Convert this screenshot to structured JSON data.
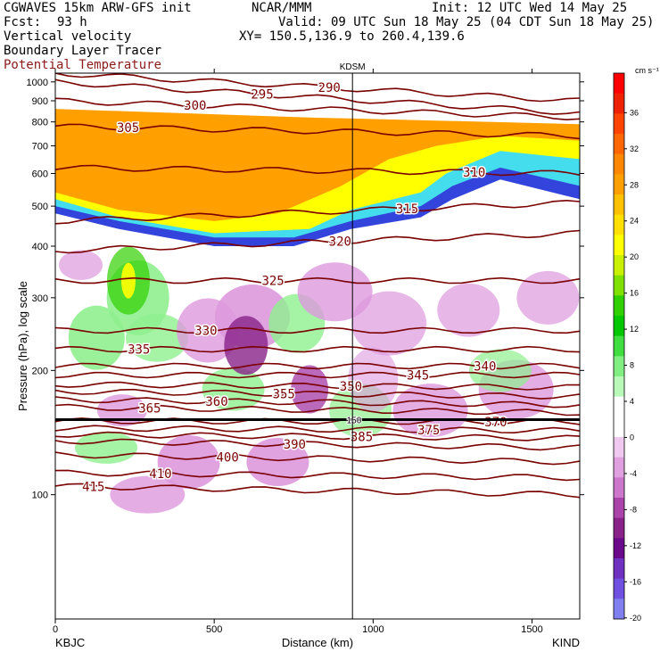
{
  "header": {
    "title": "CGWAVES 15km ARW-GFS init",
    "center": "NCAR/MMM",
    "init": "Init: 12 UTC Wed 14 May 25",
    "fcst_label": "Fcst:",
    "fcst_value": "93 h",
    "valid": "Valid: 09 UTC Sun 18 May 25 (04 CDT Sun 18 May 25)",
    "field1": "Vertical velocity",
    "field2": "Boundary Layer Tracer",
    "field3": "Potential Temperature",
    "xy": "XY= 150.5,136.9 to 260.4,139.6"
  },
  "colors": {
    "theta": "#7a0000",
    "green": "#8ff08f",
    "purple": "#dd99dd"
  },
  "chart_data": {
    "type": "heatmap",
    "xlabel": "Distance (km)",
    "ylabel": "Pressure (hPa), log scale",
    "xlim": [
      0,
      1650
    ],
    "ylim": [
      1050,
      50
    ],
    "y_scale": "log",
    "x_ticks": [
      0,
      500,
      1000,
      1500
    ],
    "y_ticks": [
      100,
      200,
      300,
      400,
      500,
      600,
      700,
      800,
      900,
      1000
    ],
    "left_station": "KBJC",
    "right_station": "KIND",
    "marker_station": "KDSM",
    "marker_x": 935,
    "colorbar": {
      "unit": "cm s⁻¹",
      "labels": [
        "36",
        "32",
        "28",
        "24",
        "20",
        "16",
        "12",
        "8",
        "4",
        "0",
        "-4",
        "-8",
        "-12",
        "-16",
        "-20"
      ],
      "colors": [
        "#ff0000",
        "#ee2200",
        "#ff4400",
        "#ff6600",
        "#ff8800",
        "#ffa000",
        "#ffc000",
        "#ffe000",
        "#ffff00",
        "#c8f000",
        "#80e000",
        "#30d000",
        "#00c800",
        "#40dd40",
        "#80ee80",
        "#b8f8b8",
        "#ffffff",
        "#ffffff",
        "#f0c8f0",
        "#e0a0e0",
        "#cc77cc",
        "#aa44aa",
        "#882288",
        "#6a0a8a",
        "#7030c0",
        "#7050e0",
        "#8080f0"
      ]
    },
    "theta_contours": [
      {
        "label": "415",
        "x": [
          0,
          1650
        ],
        "y": [
          105,
          100
        ]
      },
      {
        "label": "410",
        "x": [
          0,
          1650
        ],
        "y": [
          113,
          110
        ]
      },
      {
        "label": "400",
        "x": [
          0,
          1650
        ],
        "y": [
          125,
          120
        ]
      },
      {
        "label": "390",
        "x": [
          0,
          1650
        ],
        "y": [
          135,
          130
        ]
      },
      {
        "label": "385",
        "x": [
          0,
          1650
        ],
        "y": [
          140,
          137
        ]
      },
      {
        "label": "375",
        "x": [
          0,
          1650
        ],
        "y": [
          145,
          143
        ]
      },
      {
        "label": "370",
        "x": [
          0,
          1650
        ],
        "y": [
          151,
          150
        ]
      },
      {
        "label": "365",
        "x": [
          0,
          1650
        ],
        "y": [
          163,
          158
        ]
      },
      {
        "label": "360",
        "x": [
          0,
          1650
        ],
        "y": [
          170,
          165
        ]
      },
      {
        "label": "355",
        "x": [
          0,
          1650
        ],
        "y": [
          178,
          173
        ]
      },
      {
        "label": "350",
        "x": [
          0,
          1650
        ],
        "y": [
          185,
          182
        ]
      },
      {
        "label": "345",
        "x": [
          0,
          1650
        ],
        "y": [
          195,
          195
        ]
      },
      {
        "label": "340",
        "x": [
          0,
          1650
        ],
        "y": [
          205,
          205
        ]
      },
      {
        "label": "335",
        "x": [
          0,
          1650
        ],
        "y": [
          225,
          225
        ]
      },
      {
        "label": "330",
        "x": [
          0,
          1650
        ],
        "y": [
          250,
          250
        ]
      },
      {
        "label": "325",
        "x": [
          0,
          1650
        ],
        "y": [
          330,
          330
        ]
      },
      {
        "label": "320",
        "x": [
          0,
          1650
        ],
        "y": [
          390,
          430
        ]
      },
      {
        "label": "315",
        "x": [
          0,
          1650
        ],
        "y": [
          460,
          510
        ]
      },
      {
        "label": "310",
        "x": [
          0,
          1650
        ],
        "y": [
          620,
          600
        ]
      },
      {
        "label": "305",
        "x": [
          0,
          1650
        ],
        "y": [
          780,
          740
        ]
      },
      {
        "label": "300",
        "x": [
          0,
          1650
        ],
        "y": [
          900,
          820
        ]
      },
      {
        "label": "295",
        "x": [
          0,
          1650
        ],
        "y": [
          1000,
          840
        ]
      },
      {
        "label": "290",
        "x": [
          0,
          1650
        ],
        "y": [
          1050,
          900
        ]
      }
    ],
    "tropopause_label": "150"
  }
}
